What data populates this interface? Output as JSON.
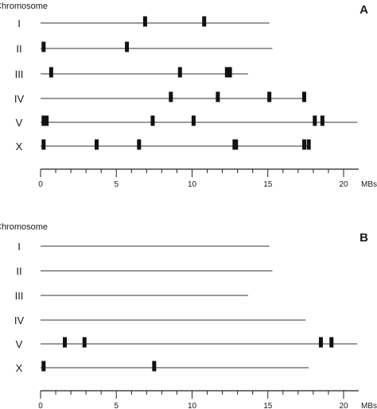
{
  "chart_data": [
    {
      "type": "chromosome-map",
      "panel_label": "A",
      "ytitle": "Chromosome",
      "xlabel": "MBs",
      "xlim": [
        0,
        21
      ],
      "xticks": [
        0,
        5,
        10,
        15,
        20
      ],
      "chromosomes": [
        {
          "name": "I",
          "length": 15.1,
          "marks": [
            6.9,
            10.8
          ]
        },
        {
          "name": "II",
          "length": 15.3,
          "marks": [
            0.2,
            5.7
          ]
        },
        {
          "name": "III",
          "length": 13.7,
          "marks": [
            0.7,
            9.2,
            12.3,
            12.5
          ]
        },
        {
          "name": "IV",
          "length": 17.5,
          "marks": [
            8.6,
            11.7,
            15.1,
            17.4
          ]
        },
        {
          "name": "V",
          "length": 20.9,
          "marks": [
            0.2,
            0.4,
            7.4,
            10.1,
            18.1,
            18.6
          ]
        },
        {
          "name": "X",
          "length": 17.7,
          "marks": [
            0.2,
            3.7,
            6.5,
            12.8,
            12.9,
            17.4,
            17.7
          ]
        }
      ]
    },
    {
      "type": "chromosome-map",
      "panel_label": "B",
      "ytitle": "Chromosome",
      "xlabel": "MBs",
      "xlim": [
        0,
        21
      ],
      "xticks": [
        0,
        5,
        10,
        15,
        20
      ],
      "chromosomes": [
        {
          "name": "I",
          "length": 15.1,
          "marks": []
        },
        {
          "name": "II",
          "length": 15.3,
          "marks": []
        },
        {
          "name": "III",
          "length": 13.7,
          "marks": []
        },
        {
          "name": "IV",
          "length": 17.5,
          "marks": []
        },
        {
          "name": "V",
          "length": 20.9,
          "marks": [
            1.6,
            2.9,
            18.5,
            19.2
          ]
        },
        {
          "name": "X",
          "length": 17.7,
          "marks": [
            0.2,
            7.5
          ]
        }
      ]
    }
  ]
}
